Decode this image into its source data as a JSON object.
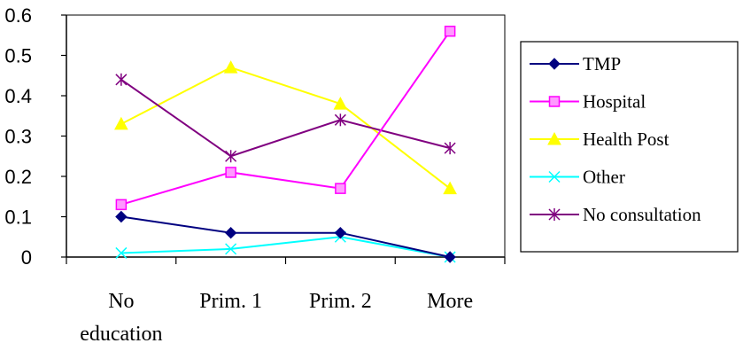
{
  "chart_data": {
    "type": "line",
    "categories": [
      [
        "No",
        "education"
      ],
      [
        "Prim. 1"
      ],
      [
        "Prim. 2"
      ],
      [
        "More"
      ]
    ],
    "ylim": [
      0,
      0.6
    ],
    "yticks": [
      "0",
      "0.1",
      "0.2",
      "0.3",
      "0.4",
      "0.5",
      "0.6"
    ],
    "grid": false,
    "legend_position": "right",
    "series": [
      {
        "name": "TMP",
        "values": [
          0.1,
          0.06,
          0.06,
          0.0
        ],
        "color": "#000080",
        "marker": "diamond"
      },
      {
        "name": "Hospital",
        "values": [
          0.13,
          0.21,
          0.17,
          0.56
        ],
        "color": "#FF00FF",
        "marker": "square"
      },
      {
        "name": "Health Post",
        "values": [
          0.33,
          0.47,
          0.38,
          0.17
        ],
        "color": "#FFFF00",
        "marker": "triangle"
      },
      {
        "name": "Other",
        "values": [
          0.01,
          0.02,
          0.05,
          0.0
        ],
        "color": "#00FFFF",
        "marker": "x"
      },
      {
        "name": "No consultation",
        "values": [
          0.44,
          0.25,
          0.34,
          0.27
        ],
        "color": "#800080",
        "marker": "star"
      }
    ]
  }
}
